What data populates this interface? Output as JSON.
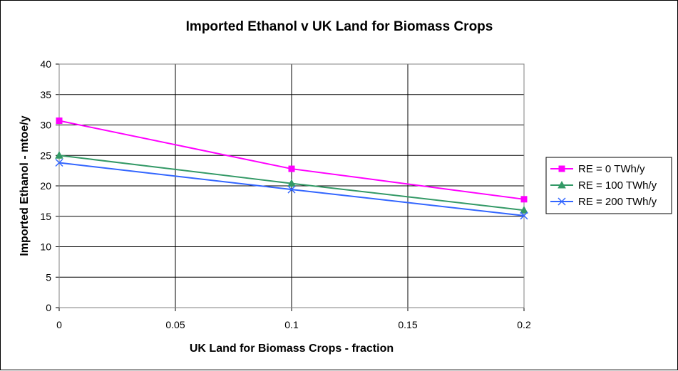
{
  "chart_data": {
    "type": "line",
    "title": "Imported Ethanol v UK Land for Biomass Crops",
    "xlabel": "UK Land for Biomass Crops - fraction",
    "ylabel": "Imported Ethanol - mtoe/y",
    "xlim": [
      0,
      0.2
    ],
    "ylim": [
      0,
      40
    ],
    "x_ticks": [
      "0",
      "0.05",
      "0.1",
      "0.15",
      "0.2"
    ],
    "y_ticks": [
      "0",
      "5",
      "10",
      "15",
      "20",
      "25",
      "30",
      "35",
      "40"
    ],
    "grid": true,
    "legend_position": "right",
    "series": [
      {
        "name": "RE = 0 TWh/y",
        "color": "#ff00ff",
        "marker": "square",
        "x": [
          0,
          0.1,
          0.2
        ],
        "y": [
          30.7,
          22.8,
          17.8
        ]
      },
      {
        "name": "RE = 100 TWh/y",
        "color": "#339966",
        "marker": "triangle",
        "x": [
          0,
          0.1,
          0.2
        ],
        "y": [
          25.0,
          20.4,
          16.0
        ]
      },
      {
        "name": "RE = 200 TWh/y",
        "color": "#3366ff",
        "marker": "x",
        "x": [
          0,
          0.1,
          0.2
        ],
        "y": [
          23.8,
          19.4,
          15.1
        ]
      }
    ]
  }
}
